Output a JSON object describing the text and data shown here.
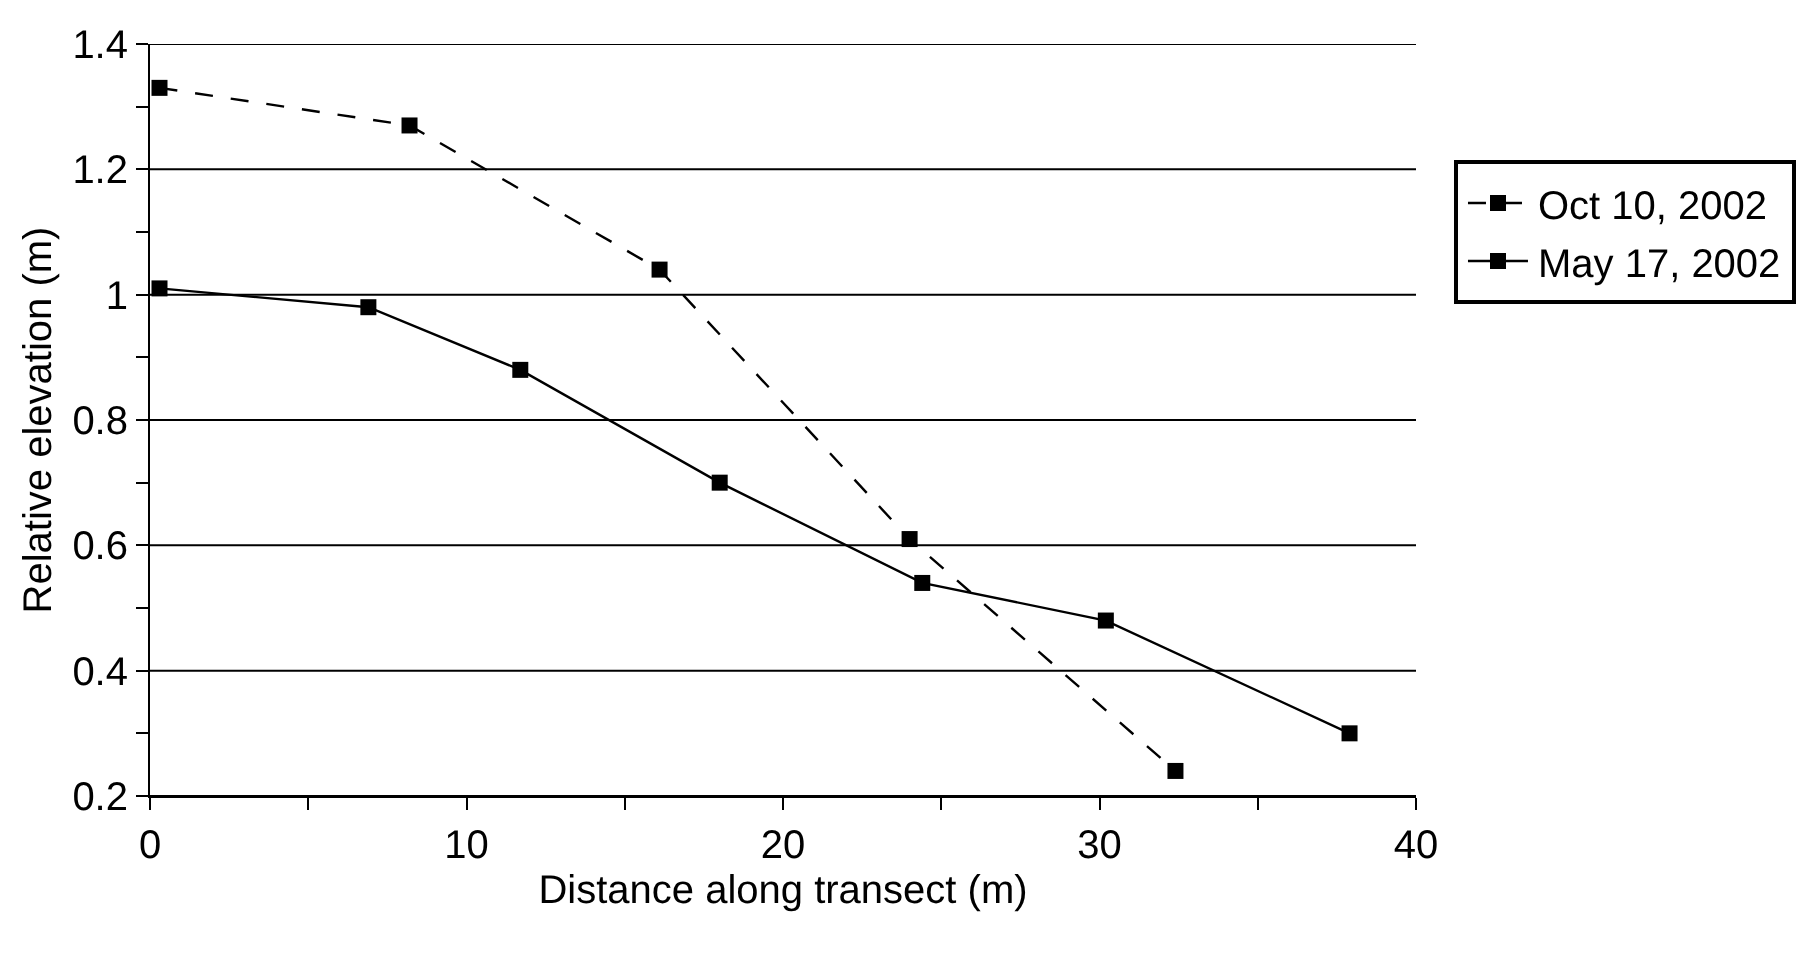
{
  "chart_data": {
    "type": "line",
    "xlabel": "Distance along transect (m)",
    "ylabel": "Relative elevation (m)",
    "xlim": [
      0,
      40
    ],
    "xticks": [
      0,
      {
        "value": 5,
        "label": null
      },
      10,
      {
        "value": 15,
        "label": null
      },
      20,
      {
        "value": 25,
        "label": null
      },
      30,
      {
        "value": 35,
        "label": null
      },
      40
    ],
    "ylim": [
      0.2,
      1.4
    ],
    "yticks": [
      0.2,
      {
        "value": 0.3,
        "label": null
      },
      0.4,
      {
        "value": 0.5,
        "label": null
      },
      0.6,
      {
        "value": 0.7,
        "label": null
      },
      0.8,
      {
        "value": 0.9,
        "label": null
      },
      1,
      {
        "value": 1.1,
        "label": null
      },
      1.2,
      {
        "value": 1.3,
        "label": null
      },
      1.4
    ],
    "grid": "y",
    "legend": "right",
    "marker": "square",
    "series": [
      {
        "name": "Oct 10, 2002",
        "color": "#000000",
        "line_style": "dashed",
        "x": [
          0.3,
          8.2,
          16.1,
          24.0,
          32.4
        ],
        "values": [
          1.33,
          1.27,
          1.04,
          0.61,
          0.24
        ]
      },
      {
        "name": "May 17, 2002",
        "color": "#000000",
        "line_style": "solid",
        "x": [
          0.3,
          6.9,
          11.7,
          18.0,
          24.4,
          30.2,
          37.9
        ],
        "values": [
          1.01,
          0.98,
          0.88,
          0.7,
          0.54,
          0.48,
          0.3
        ]
      }
    ]
  }
}
